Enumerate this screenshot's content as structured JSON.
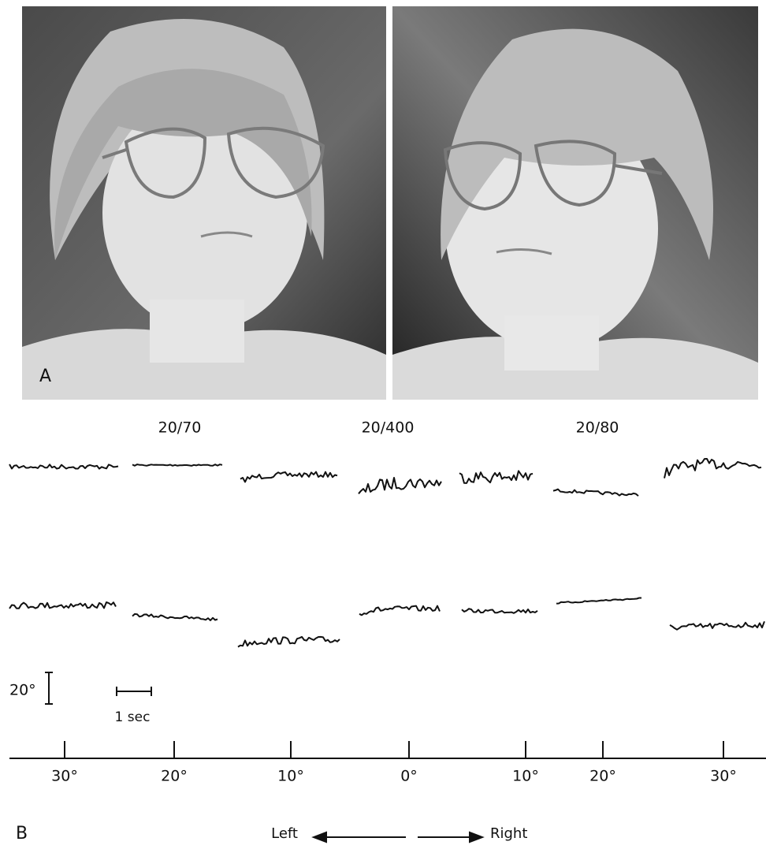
{
  "panel_a": {
    "label": "A"
  },
  "panel_b": {
    "label": "B",
    "acuity_labels": [
      "20/70",
      "20/400",
      "20/80"
    ],
    "vertical_scale": "20°",
    "time_scale": "1 sec",
    "axis_ticks": [
      "30°",
      "20°",
      "10°",
      "0°",
      "10°",
      "20°",
      "30°"
    ],
    "direction": {
      "left": "Left",
      "right": "Right"
    }
  }
}
